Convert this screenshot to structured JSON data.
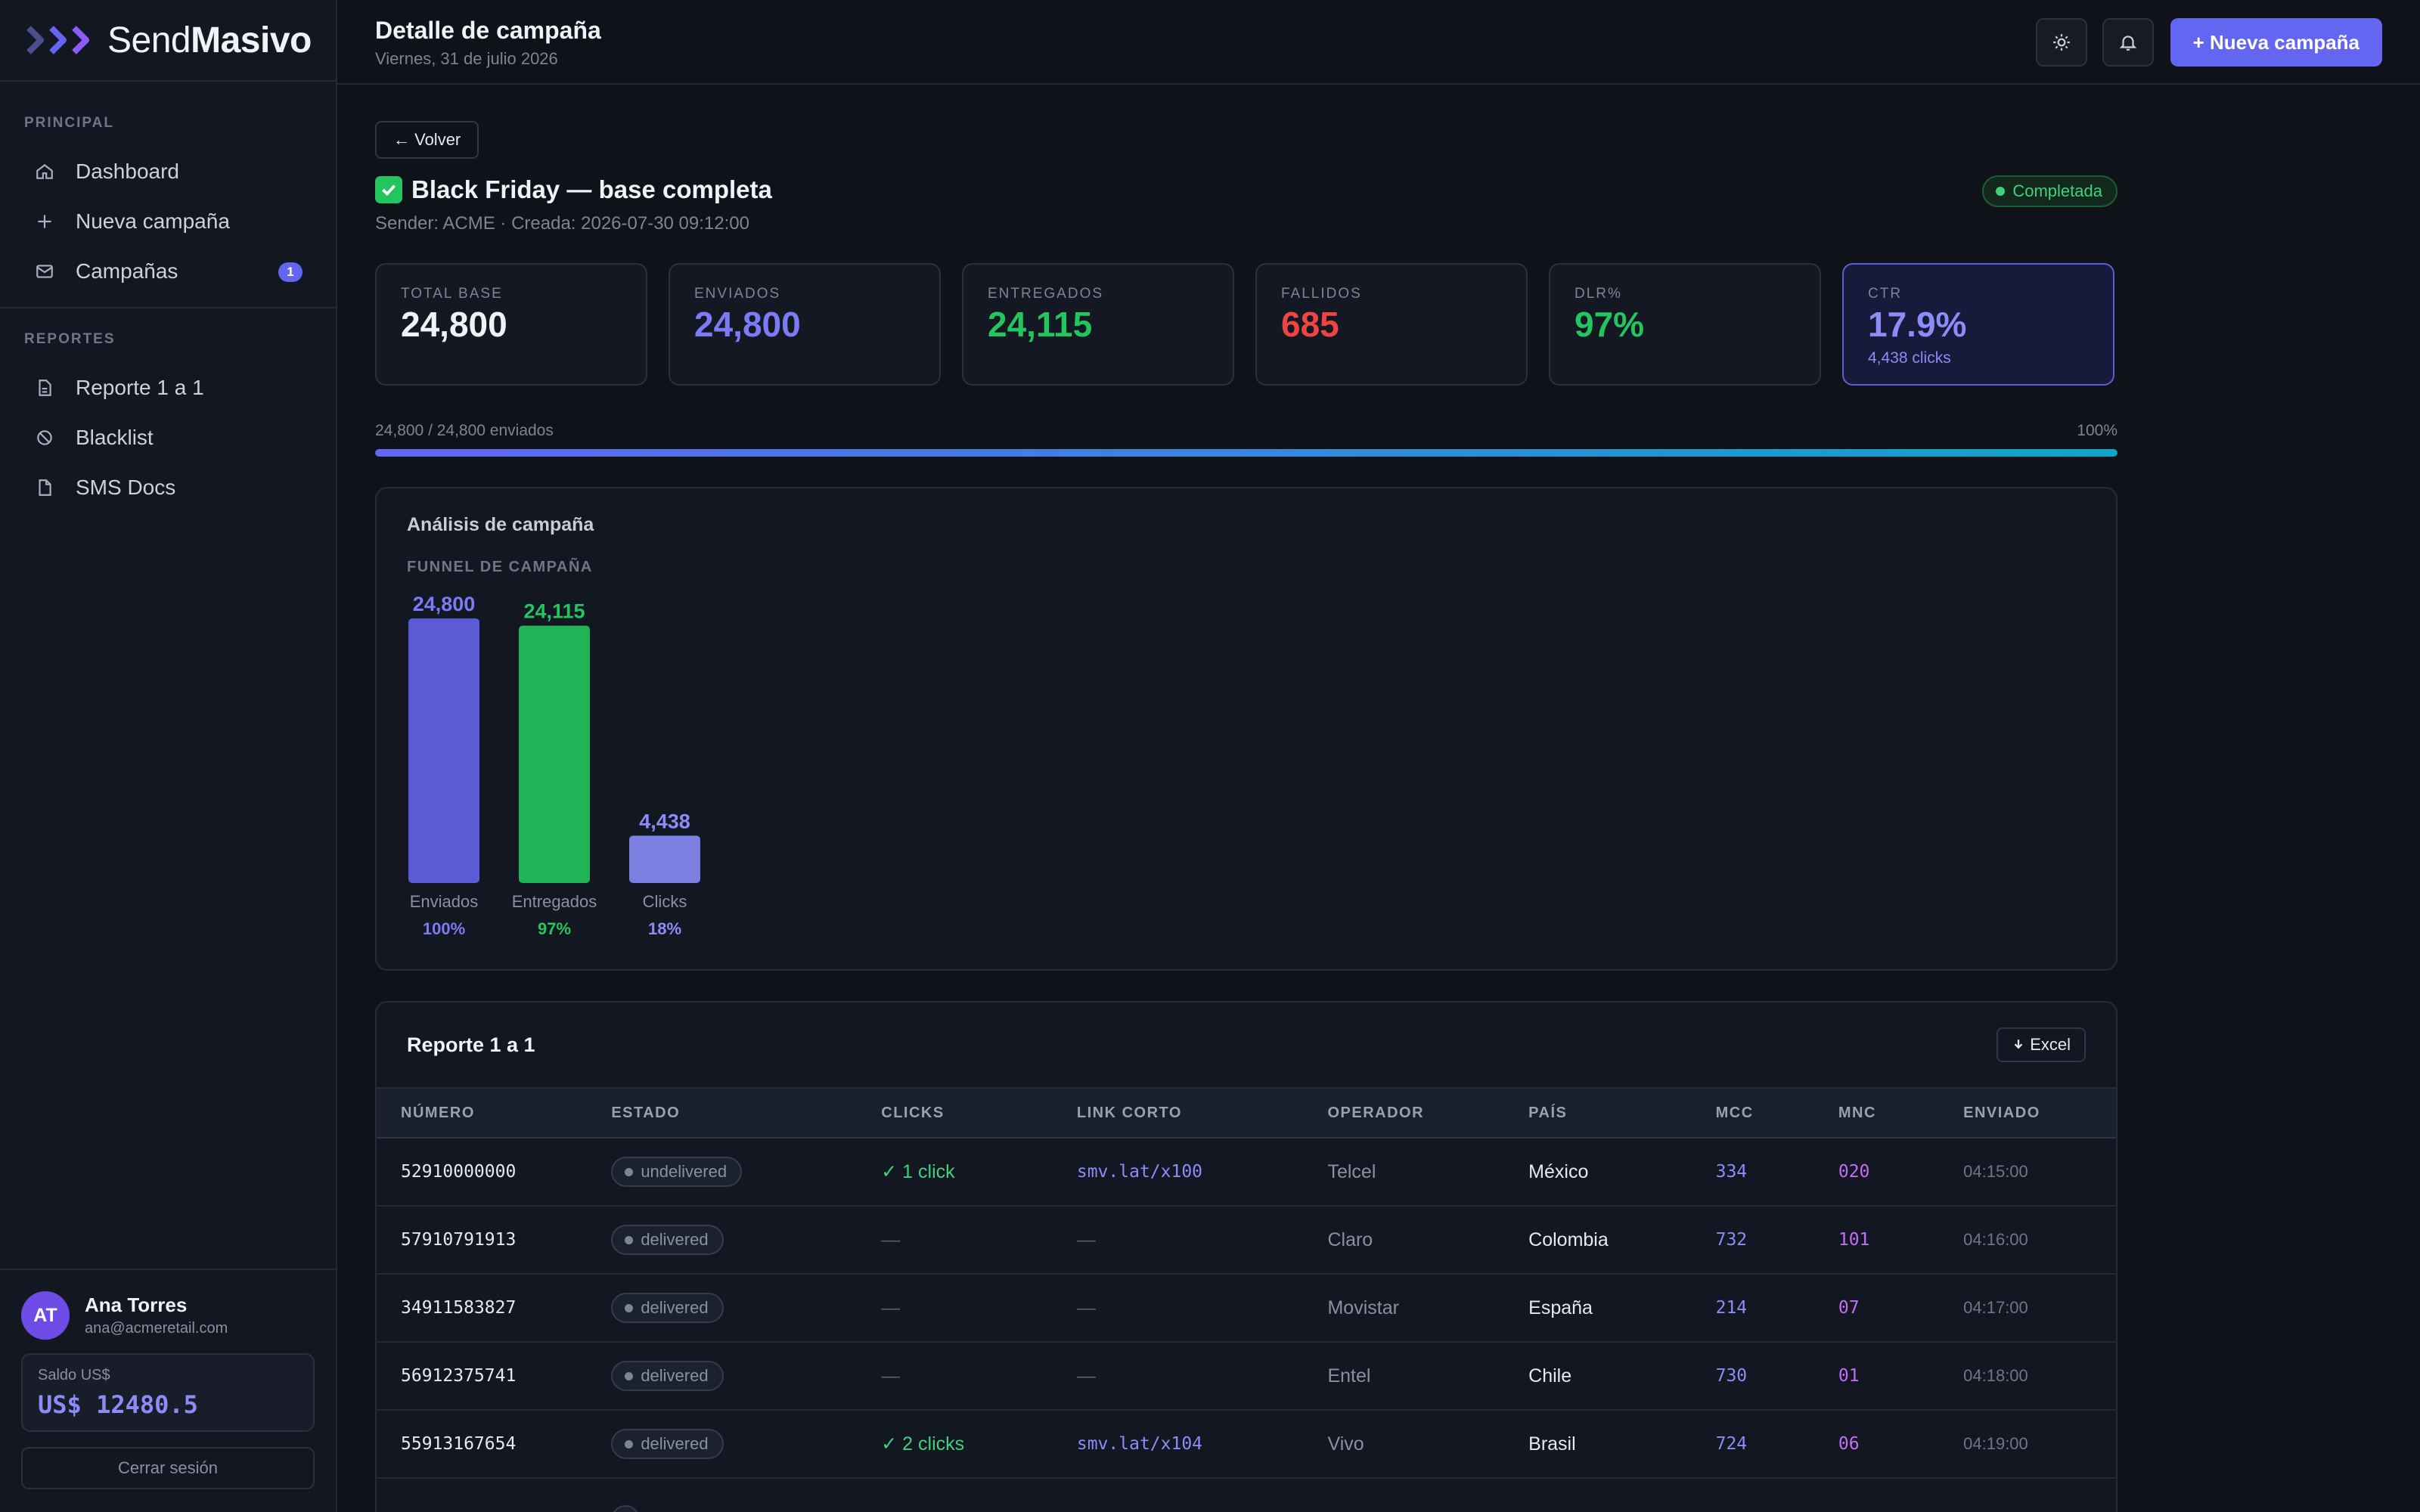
{
  "brand": {
    "name_light": "Send",
    "name_bold": "Masivo"
  },
  "sidebar": {
    "sections": [
      {
        "label": "PRINCIPAL",
        "items": [
          {
            "label": "Dashboard",
            "icon": "home-icon"
          },
          {
            "label": "Nueva campaña",
            "icon": "plus-icon"
          },
          {
            "label": "Campañas",
            "icon": "mail-icon",
            "badge": "1"
          }
        ]
      },
      {
        "label": "REPORTES",
        "items": [
          {
            "label": "Reporte 1 a 1",
            "icon": "report-icon"
          },
          {
            "label": "Blacklist",
            "icon": "block-icon"
          },
          {
            "label": "SMS Docs",
            "icon": "document-icon"
          }
        ]
      }
    ],
    "user": {
      "initials": "AT",
      "name": "Ana Torres",
      "email": "ana@acmeretail.com"
    },
    "balance": {
      "label": "Saldo US$",
      "value": "US$ 12480.5"
    },
    "logout_label": "Cerrar sesión"
  },
  "header": {
    "title": "Detalle de campaña",
    "date": "Viernes, 31 de julio 2026",
    "new_campaign_label": "+ Nueva campaña"
  },
  "campaign": {
    "back_label": "← Volver",
    "title": "Black Friday — base completa",
    "meta": "Sender: ACME · Creada: 2026-07-30 09:12:00",
    "status": "Completada",
    "kpis": [
      {
        "label": "TOTAL BASE",
        "value": "24,800",
        "color": "#f1f2f6"
      },
      {
        "label": "ENVIADOS",
        "value": "24,800",
        "color": "#7b7cf5"
      },
      {
        "label": "ENTREGADOS",
        "value": "24,115",
        "color": "#22c55e"
      },
      {
        "label": "FALLIDOS",
        "value": "685",
        "color": "#ef4444"
      },
      {
        "label": "DLR%",
        "value": "97%",
        "color": "#22c55e"
      },
      {
        "label": "CTR",
        "value": "17.9%",
        "color": "#8b8cf7",
        "sub": "4,438 clicks"
      }
    ],
    "progress": {
      "text": "24,800 / 24,800 enviados",
      "percent_label": "100%",
      "fraction": 1.0
    }
  },
  "analysis": {
    "title": "Análisis de campaña",
    "funnel_label": "FUNNEL DE CAMPAÑA"
  },
  "chart_data": {
    "type": "bar",
    "categories": [
      "Enviados",
      "Entregados",
      "Clicks"
    ],
    "values": [
      24800,
      24115,
      4438
    ],
    "value_labels": [
      "24,800",
      "24,115",
      "4,438"
    ],
    "percent_labels": [
      "100%",
      "97%",
      "18%"
    ],
    "colors": [
      "#5b5bd6",
      "#22b358",
      "#7b7fe0"
    ],
    "label_colors": [
      "#7b7cf5",
      "#22c55e",
      "#8b8cf7"
    ],
    "title": "FUNNEL DE CAMPAÑA"
  },
  "report": {
    "title": "Reporte 1 a 1",
    "excel_label": "Excel",
    "columns": [
      "NÚMERO",
      "ESTADO",
      "CLICKS",
      "LINK CORTO",
      "OPERADOR",
      "PAÍS",
      "MCC",
      "MNC",
      "ENVIADO"
    ],
    "rows": [
      {
        "numero": "52910000000",
        "estado": "undelivered",
        "clicks": "✓ 1 click",
        "link": "smv.lat/x100",
        "operador": "Telcel",
        "pais": "México",
        "mcc": "334",
        "mnc": "020",
        "enviado": "04:15:00"
      },
      {
        "numero": "57910791913",
        "estado": "delivered",
        "clicks": "—",
        "link": "—",
        "operador": "Claro",
        "pais": "Colombia",
        "mcc": "732",
        "mnc": "101",
        "enviado": "04:16:00"
      },
      {
        "numero": "34911583827",
        "estado": "delivered",
        "clicks": "—",
        "link": "—",
        "operador": "Movistar",
        "pais": "España",
        "mcc": "214",
        "mnc": "07",
        "enviado": "04:17:00"
      },
      {
        "numero": "56912375741",
        "estado": "delivered",
        "clicks": "—",
        "link": "—",
        "operador": "Entel",
        "pais": "Chile",
        "mcc": "730",
        "mnc": "01",
        "enviado": "04:18:00"
      },
      {
        "numero": "55913167654",
        "estado": "delivered",
        "clicks": "✓ 2 clicks",
        "link": "smv.lat/x104",
        "operador": "Vivo",
        "pais": "Brasil",
        "mcc": "724",
        "mnc": "06",
        "enviado": "04:19:00"
      }
    ]
  }
}
